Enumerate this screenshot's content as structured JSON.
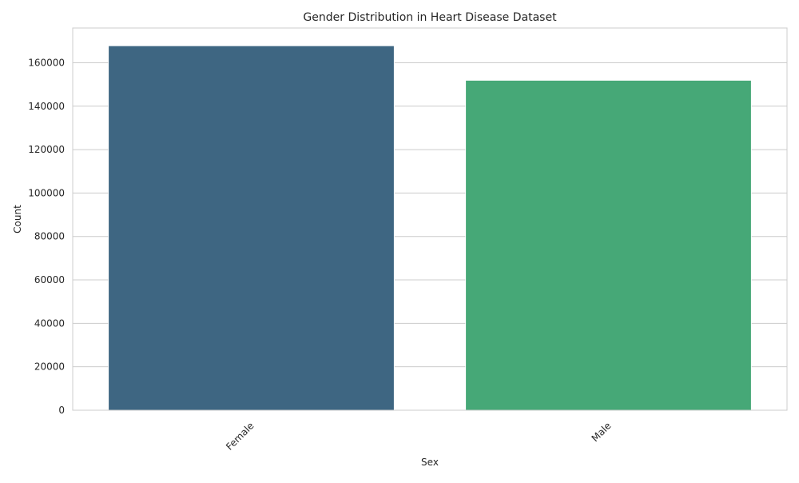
{
  "chart_data": {
    "type": "bar",
    "title": "Gender Distribution in Heart Disease Dataset",
    "xlabel": "Sex",
    "ylabel": "Count",
    "categories": [
      "Female",
      "Male"
    ],
    "values": [
      167800,
      151900
    ],
    "ylim": [
      0,
      176000
    ],
    "yticks": [
      0,
      20000,
      40000,
      60000,
      80000,
      100000,
      120000,
      140000,
      160000
    ],
    "ytick_labels": [
      "0",
      "20000",
      "40000",
      "60000",
      "80000",
      "100000",
      "120000",
      "140000",
      "160000"
    ],
    "xtick_rotation": "45 degrees",
    "grid": "horizontal",
    "colors": [
      "#3e6682",
      "#46a877"
    ],
    "frame_color": "#cccccc",
    "grid_color": "#cccccc"
  }
}
